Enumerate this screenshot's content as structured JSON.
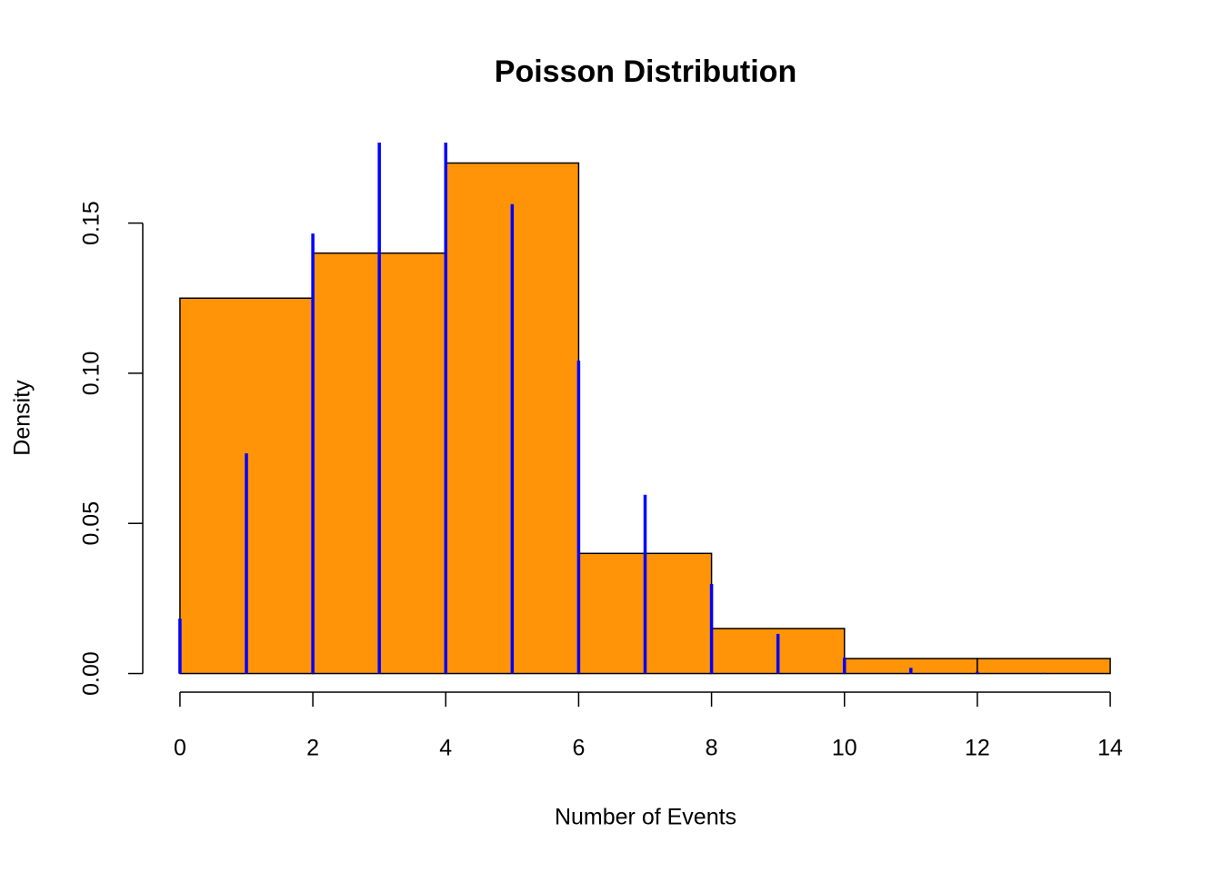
{
  "chart_data": {
    "type": "histogram",
    "title": "Poisson Distribution",
    "xlabel": "Number of Events",
    "ylabel": "Density",
    "bins": [
      0,
      2,
      4,
      6,
      8,
      10,
      12,
      14
    ],
    "values": [
      0.125,
      0.14,
      0.17,
      0.04,
      0.015,
      0.005,
      0.005
    ],
    "color": "#ff9408",
    "pmf": {
      "x": [
        0,
        1,
        2,
        3,
        4,
        5,
        6,
        7,
        8,
        9,
        10,
        11,
        12,
        13
      ],
      "values": [
        0.0183,
        0.0733,
        0.1465,
        0.1954,
        0.1954,
        0.1563,
        0.1042,
        0.0595,
        0.0298,
        0.0132,
        0.0053,
        0.0019,
        0.0006,
        0.0002
      ],
      "color": "#0000ff"
    },
    "xlim": [
      -0.56,
      14.56
    ],
    "ylim": [
      -0.0068,
      0.1768
    ],
    "xticks": [
      0,
      2,
      4,
      6,
      8,
      10,
      12,
      14
    ],
    "yticks": [
      {
        "value": 0,
        "label": "0.00"
      },
      {
        "value": 0.05,
        "label": "0.05"
      },
      {
        "value": 0.1,
        "label": "0.10"
      },
      {
        "value": 0.15,
        "label": "0.15"
      }
    ]
  }
}
